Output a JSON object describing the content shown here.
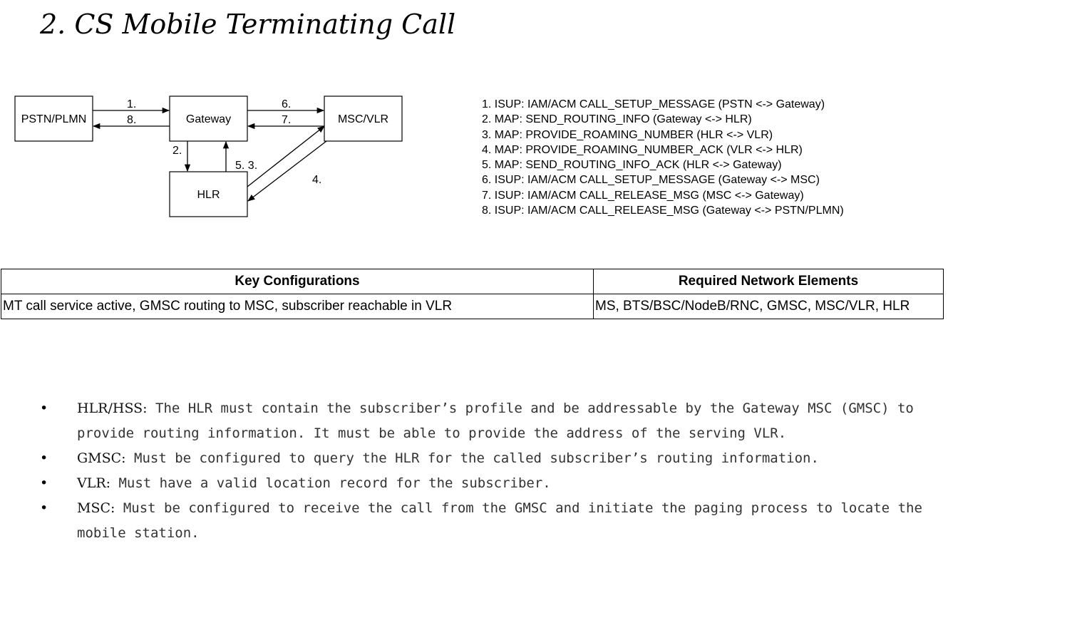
{
  "title": "2. CS Mobile Terminating Call",
  "diagram": {
    "nodes": {
      "pstn": "PSTN/PLMN",
      "gateway": "Gateway",
      "msc": "MSC/VLR",
      "hlr": "HLR"
    },
    "labels": {
      "l1": "1.",
      "l8": "8.",
      "l6": "6.",
      "l7": "7.",
      "l2": "2.",
      "l53": "5. 3.",
      "l4": "4."
    }
  },
  "legend": [
    "1. ISUP: IAM/ACM CALL_SETUP_MESSAGE (PSTN <-> Gateway)",
    "2. MAP: SEND_ROUTING_INFO (Gateway <-> HLR)",
    "3. MAP: PROVIDE_ROAMING_NUMBER (HLR <-> VLR)",
    "4. MAP: PROVIDE_ROAMING_NUMBER_ACK (VLR <-> HLR)",
    "5. MAP: SEND_ROUTING_INFO_ACK (HLR <-> Gateway)",
    "6. ISUP: IAM/ACM CALL_SETUP_MESSAGE (Gateway <-> MSC)",
    "7. ISUP: IAM/ACM CALL_RELEASE_MSG (MSC <-> Gateway)",
    "8. ISUP: IAM/ACM CALL_RELEASE_MSG (Gateway <-> PSTN/PLMN)"
  ],
  "table": {
    "headers": [
      "Key Configurations",
      "Required Network Elements"
    ],
    "row": [
      "MT call service active, GMSC routing to MSC, subscriber reachable in VLR",
      "MS, BTS/BSC/NodeB/RNC, GMSC, MSC/VLR, HLR"
    ]
  },
  "requirements": [
    {
      "term": "HLR/HSS:",
      "desc": " The HLR must contain the subscriber’s profile and be addressable by the Gateway MSC (GMSC) to provide routing information. It must be able to provide the address of the serving VLR."
    },
    {
      "term": "GMSC:",
      "desc": " Must be configured to query the HLR for the called subscriber’s routing information."
    },
    {
      "term": "VLR:",
      "desc": " Must have a valid location record for the subscriber."
    },
    {
      "term": "MSC:",
      "desc": " Must be configured to receive the call from the GMSC and initiate the paging process to locate the mobile station."
    }
  ],
  "bullet": "•"
}
